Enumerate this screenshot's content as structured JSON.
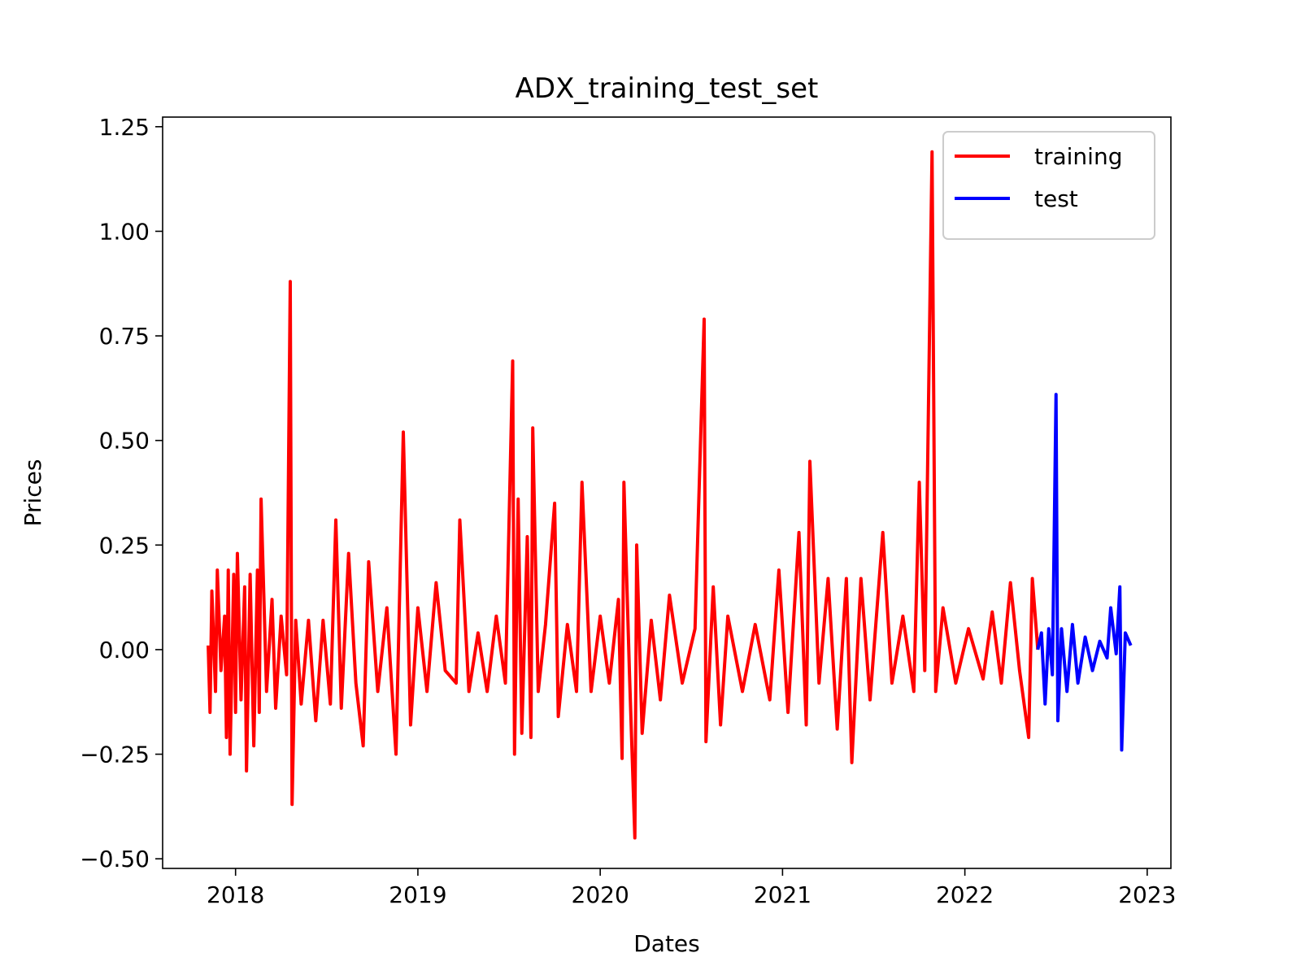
{
  "chart_data": {
    "type": "line",
    "title": "ADX_training_test_set",
    "x_label": "Dates",
    "y_label": "Prices",
    "xlim": [
      2017.6,
      2023.13
    ],
    "xticks": [
      2018,
      2019,
      2020,
      2021,
      2022,
      2023
    ],
    "ylim": [
      -0.523,
      1.273
    ],
    "yticks": [
      {
        "value": -0.5,
        "label": "−0.50"
      },
      {
        "value": -0.25,
        "label": "−0.25"
      },
      {
        "value": 0,
        "label": "0.00"
      },
      {
        "value": 0.25,
        "label": "0.25"
      },
      {
        "value": 0.5,
        "label": "0.50"
      },
      {
        "value": 0.75,
        "label": "0.75"
      },
      {
        "value": 1,
        "label": "1.00"
      },
      {
        "value": 1.25,
        "label": "1.25"
      }
    ],
    "legend": "upper right",
    "series": [
      {
        "name": "training",
        "color": "#ff0000",
        "x": [
          2017.85,
          2017.86,
          2017.87,
          2017.89,
          2017.9,
          2017.92,
          2017.94,
          2017.95,
          2017.96,
          2017.97,
          2017.99,
          2018.0,
          2018.01,
          2018.03,
          2018.05,
          2018.06,
          2018.08,
          2018.1,
          2018.12,
          2018.13,
          2018.14,
          2018.17,
          2018.2,
          2018.22,
          2018.25,
          2018.28,
          2018.3,
          2018.31,
          2018.33,
          2018.36,
          2018.4,
          2018.44,
          2018.48,
          2018.52,
          2018.55,
          2018.58,
          2018.62,
          2018.66,
          2018.7,
          2018.73,
          2018.78,
          2018.83,
          2018.88,
          2018.92,
          2018.96,
          2019.0,
          2019.05,
          2019.1,
          2019.15,
          2019.21,
          2019.23,
          2019.28,
          2019.33,
          2019.38,
          2019.43,
          2019.48,
          2019.52,
          2019.53,
          2019.55,
          2019.57,
          2019.6,
          2019.62,
          2019.63,
          2019.66,
          2019.7,
          2019.75,
          2019.77,
          2019.82,
          2019.87,
          2019.9,
          2019.95,
          2020.0,
          2020.05,
          2020.1,
          2020.12,
          2020.13,
          2020.16,
          2020.19,
          2020.2,
          2020.23,
          2020.28,
          2020.33,
          2020.38,
          2020.45,
          2020.52,
          2020.57,
          2020.58,
          2020.62,
          2020.66,
          2020.7,
          2020.78,
          2020.85,
          2020.93,
          2020.98,
          2021.03,
          2021.09,
          2021.13,
          2021.15,
          2021.2,
          2021.25,
          2021.3,
          2021.35,
          2021.38,
          2021.43,
          2021.48,
          2021.55,
          2021.6,
          2021.66,
          2021.72,
          2021.75,
          2021.78,
          2021.82,
          2021.84,
          2021.88,
          2021.95,
          2022.02,
          2022.1,
          2022.15,
          2022.2,
          2022.25,
          2022.3,
          2022.35,
          2022.37,
          2022.4
        ],
        "values": [
          0.01,
          -0.15,
          0.14,
          -0.1,
          0.19,
          -0.05,
          0.08,
          -0.21,
          0.19,
          -0.25,
          0.18,
          -0.15,
          0.23,
          -0.12,
          0.15,
          -0.29,
          0.18,
          -0.23,
          0.19,
          -0.15,
          0.36,
          -0.1,
          0.12,
          -0.14,
          0.08,
          -0.06,
          0.88,
          -0.37,
          0.07,
          -0.13,
          0.07,
          -0.17,
          0.07,
          -0.13,
          0.31,
          -0.14,
          0.23,
          -0.08,
          -0.23,
          0.21,
          -0.1,
          0.1,
          -0.25,
          0.52,
          -0.18,
          0.1,
          -0.1,
          0.16,
          -0.05,
          -0.08,
          0.31,
          -0.1,
          0.04,
          -0.1,
          0.08,
          -0.08,
          0.69,
          -0.25,
          0.36,
          -0.2,
          0.27,
          -0.21,
          0.53,
          -0.1,
          0.06,
          0.35,
          -0.16,
          0.06,
          -0.1,
          0.4,
          -0.1,
          0.08,
          -0.08,
          0.12,
          -0.26,
          0.4,
          -0.05,
          -0.45,
          0.25,
          -0.2,
          0.07,
          -0.12,
          0.13,
          -0.08,
          0.05,
          0.79,
          -0.22,
          0.15,
          -0.18,
          0.08,
          -0.1,
          0.06,
          -0.12,
          0.19,
          -0.15,
          0.28,
          -0.18,
          0.45,
          -0.08,
          0.17,
          -0.19,
          0.17,
          -0.27,
          0.17,
          -0.12,
          0.28,
          -0.08,
          0.08,
          -0.1,
          0.4,
          -0.05,
          1.19,
          -0.1,
          0.1,
          -0.08,
          0.05,
          -0.07,
          0.09,
          -0.08,
          0.16,
          -0.05,
          -0.21,
          0.17,
          0.0
        ]
      },
      {
        "name": "test",
        "color": "#0000ff",
        "x": [
          2022.4,
          2022.42,
          2022.44,
          2022.46,
          2022.48,
          2022.5,
          2022.51,
          2022.53,
          2022.56,
          2022.59,
          2022.62,
          2022.66,
          2022.7,
          2022.74,
          2022.78,
          2022.8,
          2022.83,
          2022.85,
          2022.86,
          2022.88,
          2022.91
        ],
        "values": [
          0.0,
          0.04,
          -0.13,
          0.05,
          -0.06,
          0.61,
          -0.17,
          0.05,
          -0.1,
          0.06,
          -0.08,
          0.03,
          -0.05,
          0.02,
          -0.02,
          0.1,
          -0.01,
          0.15,
          -0.24,
          0.04,
          0.01
        ]
      }
    ]
  }
}
